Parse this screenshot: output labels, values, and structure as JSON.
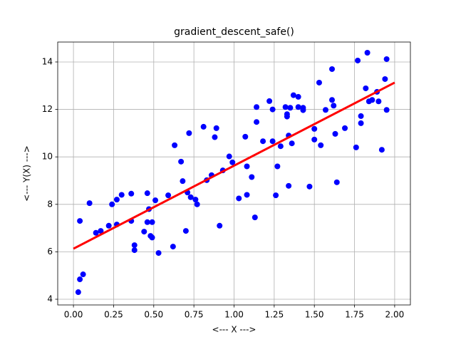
{
  "chart_data": {
    "type": "scatter",
    "title": "gradient_descent_safe()",
    "x_label": "<--- X --->",
    "y_label": "<--- Y(X) --->",
    "color": "#0000ff",
    "x": [
      0.03,
      0.04,
      0.06,
      0.04,
      0.1,
      0.14,
      0.17,
      0.22,
      0.24,
      0.27,
      0.27,
      0.3,
      0.36,
      0.36,
      0.38,
      0.38,
      0.44,
      0.46,
      0.46,
      0.47,
      0.48,
      0.49,
      0.49,
      0.51,
      0.53,
      0.59,
      0.62,
      0.63,
      0.67,
      0.68,
      0.7,
      0.71,
      0.72,
      0.73,
      0.76,
      0.77,
      0.81,
      0.83,
      0.86,
      0.88,
      0.89,
      0.91,
      0.93,
      0.97,
      0.99,
      1.03,
      1.07,
      1.08,
      1.08,
      1.11,
      1.13,
      1.14,
      1.14,
      1.18,
      1.22,
      1.24,
      1.24,
      1.26,
      1.27,
      1.29,
      1.32,
      1.33,
      1.33,
      1.34,
      1.34,
      1.35,
      1.36,
      1.37,
      1.4,
      1.4,
      1.43,
      1.43,
      1.47,
      1.5,
      1.5,
      1.54,
      1.53,
      1.57,
      1.61,
      1.61,
      1.62,
      1.63,
      1.64,
      1.69,
      1.76,
      1.77,
      1.79,
      1.79,
      1.82,
      1.83,
      1.84,
      1.86,
      1.89,
      1.9,
      1.92,
      1.94,
      1.95,
      1.95
    ],
    "y": [
      4.3,
      4.84,
      5.05,
      7.3,
      8.05,
      6.8,
      6.88,
      7.1,
      8.0,
      8.2,
      7.15,
      8.4,
      8.45,
      7.3,
      6.28,
      6.07,
      6.85,
      8.47,
      7.25,
      7.8,
      6.67,
      7.25,
      6.6,
      8.17,
      5.95,
      8.38,
      6.22,
      10.49,
      9.8,
      8.98,
      6.88,
      8.5,
      11.0,
      8.3,
      8.2,
      8.0,
      11.27,
      9.02,
      9.23,
      10.83,
      11.21,
      7.1,
      9.43,
      10.02,
      9.77,
      8.25,
      10.85,
      9.6,
      8.4,
      9.15,
      7.45,
      12.1,
      11.47,
      10.66,
      12.35,
      12.0,
      10.66,
      8.38,
      9.6,
      10.45,
      12.1,
      11.8,
      11.7,
      10.9,
      8.78,
      12.07,
      10.57,
      12.6,
      12.53,
      12.1,
      12.07,
      11.97,
      8.75,
      11.18,
      10.73,
      10.49,
      13.13,
      11.98,
      12.4,
      13.7,
      12.16,
      10.97,
      8.93,
      11.21,
      10.4,
      14.06,
      11.72,
      11.42,
      12.89,
      14.39,
      12.34,
      12.4,
      12.74,
      12.34,
      10.3,
      13.28,
      14.12,
      11.98
    ],
    "fit_line": {
      "x": [
        0,
        2
      ],
      "y": [
        6.13,
        13.13
      ],
      "color": "#ff0000"
    },
    "xlim": [
      -0.098,
      2.098
    ],
    "ylim": [
      3.76,
      14.84
    ],
    "xticks": [
      {
        "value": 0,
        "label": "0.00"
      },
      {
        "value": 0.25,
        "label": "0.25"
      },
      {
        "value": 0.5,
        "label": "0.50"
      },
      {
        "value": 0.75,
        "label": "0.75"
      },
      {
        "value": 1,
        "label": "1.00"
      },
      {
        "value": 1.25,
        "label": "1.25"
      },
      {
        "value": 1.5,
        "label": "1.50"
      },
      {
        "value": 1.75,
        "label": "1.75"
      },
      {
        "value": 2,
        "label": "2.00"
      }
    ],
    "yticks": [
      4,
      6,
      8,
      10,
      12,
      14
    ],
    "grid": true
  }
}
